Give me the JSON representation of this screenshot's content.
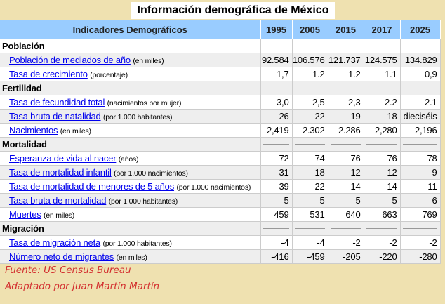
{
  "title": "Información demográfica de México",
  "header": {
    "label": "Indicadores Demográficos",
    "years": [
      "1995",
      "2005",
      "2015",
      "2017",
      "2025"
    ]
  },
  "rows": [
    {
      "type": "section",
      "label": "Población"
    },
    {
      "type": "data",
      "label": "Población de mediados de año",
      "unit": "(en miles)",
      "values": [
        "92.584",
        "106.576",
        "121.737",
        "124.575",
        "134.829"
      ]
    },
    {
      "type": "data",
      "label": "Tasa de crecimiento",
      "unit": "(porcentaje)",
      "values": [
        "1,7",
        "1.2",
        "1.2",
        "1.1",
        "0,9"
      ]
    },
    {
      "type": "section",
      "label": "Fertilidad"
    },
    {
      "type": "data",
      "label": "Tasa de fecundidad total",
      "unit": "(nacimientos por mujer)",
      "values": [
        "3,0",
        "2,5",
        "2,3",
        "2.2",
        "2.1"
      ]
    },
    {
      "type": "data",
      "label": "Tasa bruta de natalidad",
      "unit": "(por 1.000 habitantes)",
      "values": [
        "26",
        "22",
        "19",
        "18",
        "dieciséis"
      ]
    },
    {
      "type": "data",
      "label": "Nacimientos",
      "unit": "(en miles)",
      "values": [
        "2,419",
        "2.302",
        "2.286",
        "2,280",
        "2,196"
      ]
    },
    {
      "type": "section",
      "label": "Mortalidad"
    },
    {
      "type": "data",
      "label": "Esperanza de vida al nacer",
      "unit": "(años)",
      "values": [
        "72",
        "74",
        "76",
        "76",
        "78"
      ]
    },
    {
      "type": "data",
      "label": "Tasa de mortalidad infantil",
      "unit": "(por 1.000 nacimientos)",
      "values": [
        "31",
        "18",
        "12",
        "12",
        "9"
      ]
    },
    {
      "type": "data",
      "label": "Tasa de mortalidad de menores de 5 años",
      "unit": "(por 1.000 nacimientos)",
      "values": [
        "39",
        "22",
        "14",
        "14",
        "11"
      ]
    },
    {
      "type": "data",
      "label": "Tasa bruta de mortalidad",
      "unit": "(por 1.000 habitantes)",
      "values": [
        "5",
        "5",
        "5",
        "5",
        "6"
      ]
    },
    {
      "type": "data",
      "label": "Muertes",
      "unit": "(en miles)",
      "values": [
        "459",
        "531",
        "640",
        "663",
        "769"
      ]
    },
    {
      "type": "section",
      "label": "Migración"
    },
    {
      "type": "data",
      "label": "Tasa de migración neta",
      "unit": "(por 1.000 habitantes)",
      "values": [
        "-4",
        "-4",
        "-2",
        "-2",
        "-2"
      ]
    },
    {
      "type": "data",
      "label": "Número neto de migrantes",
      "unit": "(en miles)",
      "values": [
        "-416",
        "-459",
        "-205",
        "-220",
        "-280"
      ]
    }
  ],
  "footer": {
    "source": "Fuente: US Census Bureau",
    "credit": "Adaptado por Juan Martín Martín"
  }
}
